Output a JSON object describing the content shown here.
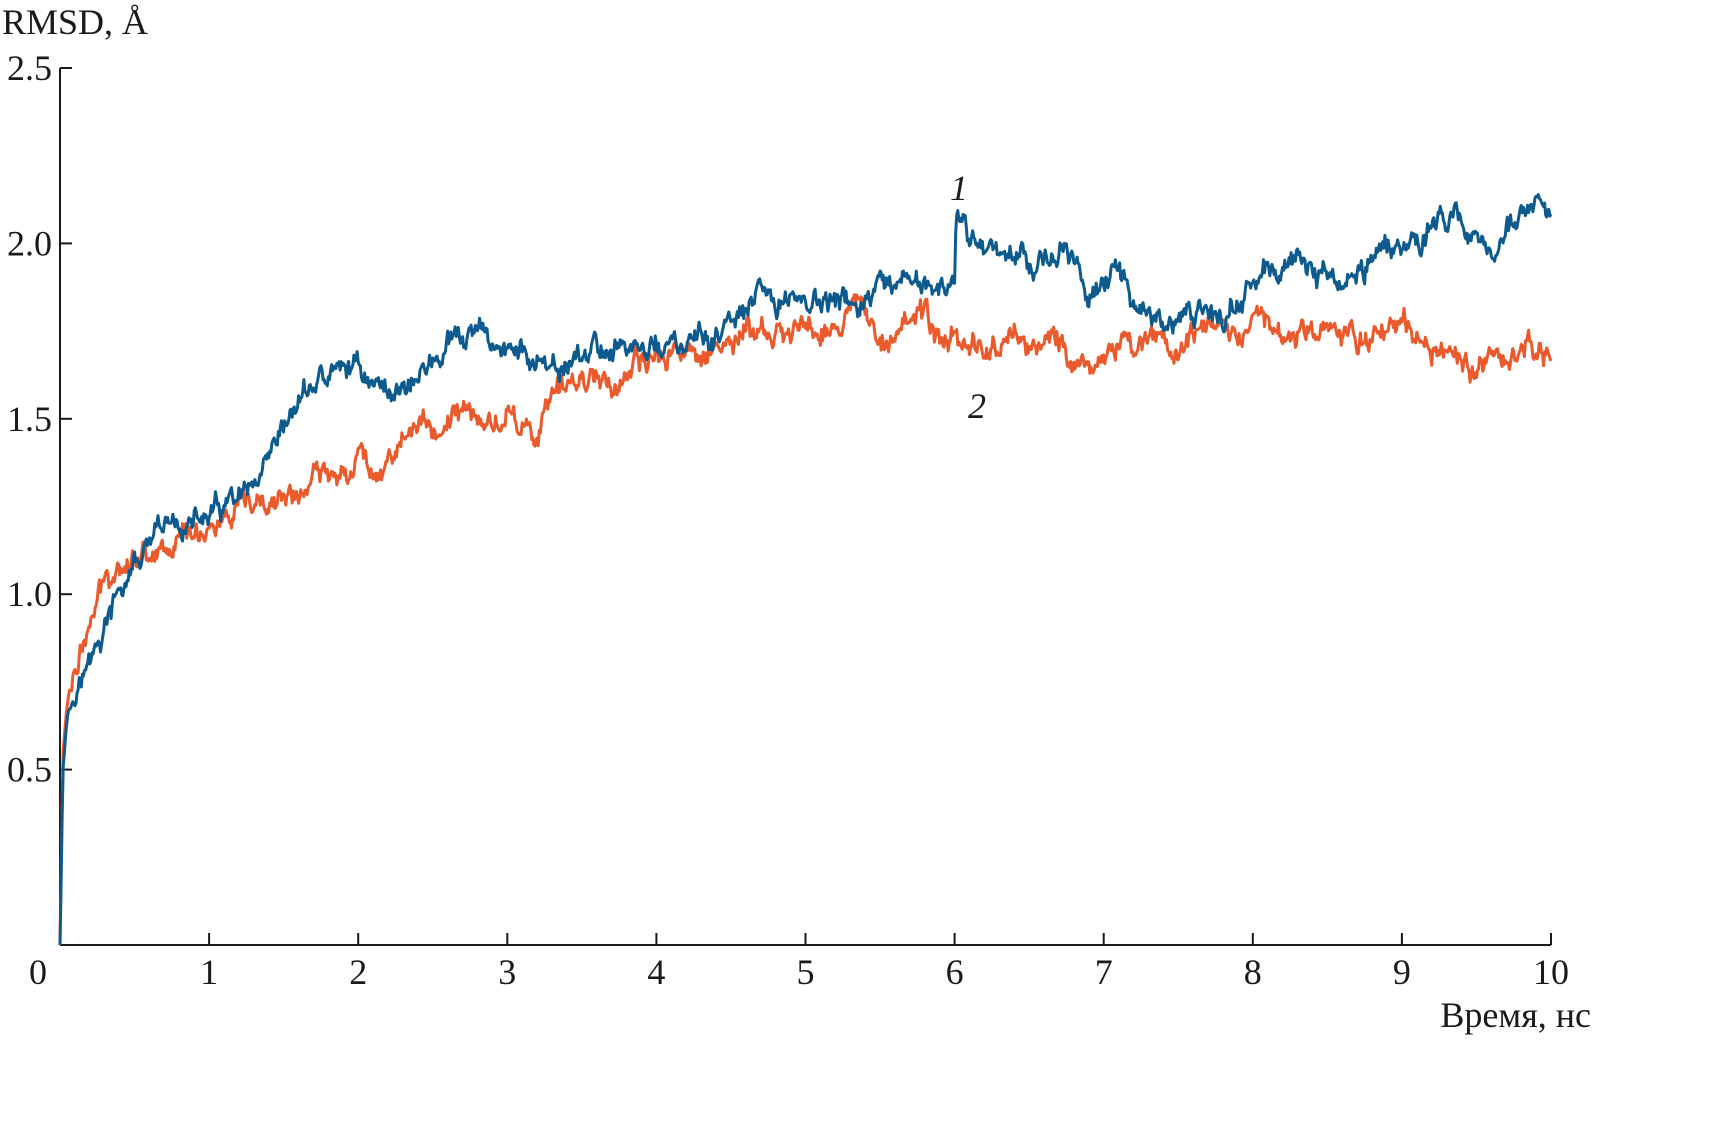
{
  "chart_data": {
    "type": "line",
    "ylabel": "RMSD, Å",
    "xlabel": "Время, нс",
    "xlim": [
      0,
      10
    ],
    "ylim": [
      0,
      2.5
    ],
    "x_ticks": [
      "0",
      "1",
      "2",
      "3",
      "4",
      "5",
      "6",
      "7",
      "8",
      "9",
      "10"
    ],
    "y_ticks": [
      "0.5",
      "1.0",
      "1.5",
      "2.0",
      "2.5"
    ],
    "grid": false,
    "series": [
      {
        "name": "1",
        "color": "#0d5a8f",
        "x": [
          0.0,
          0.02,
          0.05,
          0.1,
          0.2,
          0.3,
          0.4,
          0.5,
          0.6,
          0.7,
          0.8,
          0.9,
          1.0,
          1.1,
          1.2,
          1.3,
          1.4,
          1.5,
          1.6,
          1.7,
          1.8,
          1.9,
          2.0,
          2.1,
          2.2,
          2.3,
          2.4,
          2.5,
          2.6,
          2.7,
          2.8,
          2.9,
          3.0,
          3.1,
          3.2,
          3.3,
          3.4,
          3.5,
          3.6,
          3.7,
          3.8,
          3.9,
          4.0,
          4.1,
          4.2,
          4.3,
          4.4,
          4.5,
          4.6,
          4.7,
          4.8,
          4.9,
          5.0,
          5.1,
          5.2,
          5.3,
          5.4,
          5.5,
          5.6,
          5.7,
          5.8,
          5.9,
          6.0,
          6.01,
          6.1,
          6.2,
          6.3,
          6.4,
          6.5,
          6.6,
          6.7,
          6.8,
          6.9,
          7.0,
          7.1,
          7.2,
          7.3,
          7.4,
          7.5,
          7.6,
          7.7,
          7.8,
          7.9,
          8.0,
          8.1,
          8.2,
          8.3,
          8.4,
          8.5,
          8.6,
          8.7,
          8.8,
          8.9,
          9.0,
          9.1,
          9.2,
          9.3,
          9.4,
          9.5,
          9.6,
          9.7,
          9.8,
          9.9,
          10.0
        ],
        "values": [
          0.0,
          0.5,
          0.66,
          0.74,
          0.8,
          0.9,
          1.0,
          1.08,
          1.12,
          1.18,
          1.2,
          1.2,
          1.22,
          1.24,
          1.26,
          1.28,
          1.34,
          1.45,
          1.55,
          1.6,
          1.62,
          1.64,
          1.66,
          1.6,
          1.58,
          1.6,
          1.62,
          1.66,
          1.7,
          1.72,
          1.74,
          1.72,
          1.7,
          1.68,
          1.67,
          1.6,
          1.66,
          1.68,
          1.7,
          1.7,
          1.72,
          1.68,
          1.72,
          1.7,
          1.7,
          1.72,
          1.74,
          1.76,
          1.8,
          1.85,
          1.82,
          1.86,
          1.84,
          1.83,
          1.82,
          1.84,
          1.82,
          1.86,
          1.84,
          1.88,
          1.9,
          1.86,
          1.85,
          2.05,
          2.02,
          2.0,
          1.98,
          1.99,
          1.96,
          1.95,
          1.98,
          1.92,
          1.88,
          1.9,
          1.9,
          1.86,
          1.82,
          1.74,
          1.76,
          1.8,
          1.82,
          1.78,
          1.84,
          1.88,
          1.9,
          1.94,
          1.95,
          1.92,
          1.9,
          1.88,
          1.92,
          1.96,
          2.0,
          2.02,
          2.0,
          2.04,
          2.08,
          2.06,
          2.02,
          2.0,
          2.04,
          2.08,
          2.1,
          2.05
        ]
      },
      {
        "name": "2",
        "color": "#ea5a2c",
        "x": [
          0.0,
          0.02,
          0.05,
          0.1,
          0.2,
          0.3,
          0.4,
          0.5,
          0.6,
          0.7,
          0.8,
          0.9,
          1.0,
          1.1,
          1.2,
          1.3,
          1.4,
          1.5,
          1.6,
          1.7,
          1.8,
          1.9,
          2.0,
          2.1,
          2.2,
          2.3,
          2.4,
          2.5,
          2.6,
          2.7,
          2.8,
          2.9,
          3.0,
          3.1,
          3.2,
          3.3,
          3.4,
          3.5,
          3.6,
          3.7,
          3.8,
          3.9,
          4.0,
          4.1,
          4.2,
          4.3,
          4.4,
          4.5,
          4.6,
          4.7,
          4.8,
          4.9,
          5.0,
          5.1,
          5.2,
          5.3,
          5.4,
          5.5,
          5.6,
          5.7,
          5.8,
          5.9,
          6.0,
          6.1,
          6.2,
          6.3,
          6.4,
          6.5,
          6.6,
          6.7,
          6.8,
          6.9,
          7.0,
          7.1,
          7.2,
          7.3,
          7.4,
          7.5,
          7.6,
          7.7,
          7.8,
          7.9,
          8.0,
          8.1,
          8.2,
          8.3,
          8.4,
          8.5,
          8.6,
          8.7,
          8.8,
          8.9,
          9.0,
          9.1,
          9.2,
          9.3,
          9.4,
          9.5,
          9.6,
          9.7,
          9.8,
          9.9,
          10.0
        ],
        "values": [
          0.0,
          0.55,
          0.7,
          0.8,
          0.9,
          1.04,
          1.1,
          1.12,
          1.12,
          1.14,
          1.16,
          1.18,
          1.2,
          1.2,
          1.22,
          1.24,
          1.24,
          1.28,
          1.28,
          1.32,
          1.34,
          1.36,
          1.4,
          1.36,
          1.38,
          1.45,
          1.48,
          1.46,
          1.5,
          1.52,
          1.5,
          1.48,
          1.52,
          1.5,
          1.44,
          1.54,
          1.6,
          1.62,
          1.64,
          1.6,
          1.62,
          1.64,
          1.66,
          1.7,
          1.68,
          1.7,
          1.72,
          1.7,
          1.76,
          1.74,
          1.72,
          1.74,
          1.78,
          1.76,
          1.78,
          1.8,
          1.82,
          1.76,
          1.76,
          1.8,
          1.78,
          1.72,
          1.74,
          1.72,
          1.7,
          1.72,
          1.74,
          1.72,
          1.7,
          1.72,
          1.68,
          1.66,
          1.68,
          1.72,
          1.7,
          1.74,
          1.72,
          1.7,
          1.72,
          1.74,
          1.74,
          1.76,
          1.8,
          1.8,
          1.76,
          1.72,
          1.76,
          1.78,
          1.74,
          1.72,
          1.76,
          1.78,
          1.78,
          1.76,
          1.72,
          1.68,
          1.66,
          1.64,
          1.66,
          1.68,
          1.7,
          1.7,
          1.68
        ]
      }
    ]
  }
}
